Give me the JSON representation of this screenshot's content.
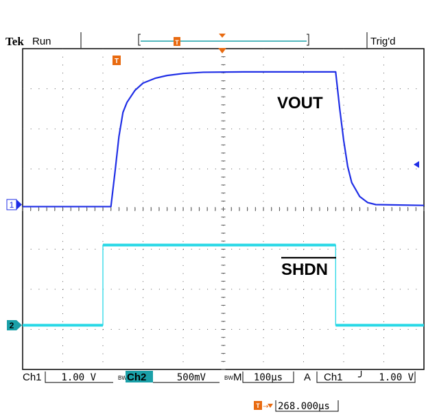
{
  "header": {
    "brand": "Tek",
    "run_state": "Run",
    "trigger_state": "Trig'd"
  },
  "trigger_marker_label": "T",
  "channel_markers": {
    "ch1": "1",
    "ch2": "2"
  },
  "status_bar": {
    "ch1_label": "Ch1",
    "ch1_scale": "1.00 V",
    "bw_label": "BW",
    "ch2_label": "Ch2",
    "ch2_scale": "500mV",
    "m_label": "M",
    "timebase": "100µs",
    "acq_mode": "A",
    "trig_source": "Ch1",
    "trig_slope": "╯",
    "trig_level": "1.00 V"
  },
  "trigger_position": "268.000µs",
  "colors": {
    "ch1": "#1f2ee6",
    "ch2": "#28d8e6",
    "ch2_badge": "#1aa0a8",
    "grid": "#555555",
    "trigger_marker": "#e86a10"
  },
  "chart_data": {
    "type": "line",
    "title": "",
    "x_divisions": 10,
    "y_divisions": 8,
    "series": [
      {
        "name": "VOUT",
        "channel": "Ch1",
        "x": [
          0,
          2.2,
          2.3,
          2.4,
          2.5,
          2.6,
          2.8,
          3.0,
          3.3,
          3.6,
          4.0,
          4.5,
          5.5,
          6.5,
          7.8,
          7.9,
          8.0,
          8.1,
          8.2,
          8.4,
          8.6,
          8.8,
          10
        ],
        "y": [
          -0.05,
          -0.05,
          0.8,
          1.7,
          2.3,
          2.55,
          2.85,
          3.03,
          3.15,
          3.22,
          3.27,
          3.3,
          3.31,
          3.31,
          3.31,
          2.4,
          1.6,
          0.95,
          0.55,
          0.2,
          0.05,
          0,
          -0.02
        ]
      },
      {
        "name": "SHDN",
        "channel": "Ch2",
        "x": [
          0,
          2.0,
          2.0,
          7.8,
          7.8,
          10
        ],
        "y": [
          0,
          0,
          2.0,
          2.0,
          0,
          0
        ]
      }
    ]
  },
  "annotations": {
    "vout": "VOUT",
    "shdn": "SHDN"
  }
}
